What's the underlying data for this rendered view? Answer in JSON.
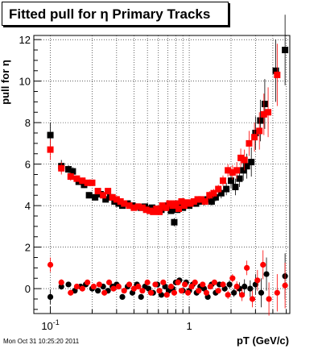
{
  "header": {
    "title": "Fitted pull for η  Primary Tracks"
  },
  "footer": {
    "timestamp": "Mon Oct 31 10:25:20 2011"
  },
  "chart_data": {
    "type": "scatter",
    "title": "Fitted pull for η  Primary Tracks",
    "xlabel": "pT (GeV/c)",
    "ylabel": "pull for η",
    "xscale": "log",
    "xlim": [
      0.076,
      5.3
    ],
    "ylim": [
      -1.2,
      12.2
    ],
    "grid": true,
    "x_ticks": [
      {
        "value": 0.1,
        "label_base": "10",
        "label_exp": "-1"
      },
      {
        "value": 1,
        "label": "1"
      }
    ],
    "y_ticks": [
      {
        "value": 0,
        "label": "0"
      },
      {
        "value": 2,
        "label": "2"
      },
      {
        "value": 4,
        "label": "4"
      },
      {
        "value": 6,
        "label": "6"
      },
      {
        "value": 8,
        "label": "8"
      },
      {
        "value": 10,
        "label": "10"
      },
      {
        "value": 12,
        "label": "12"
      }
    ],
    "colors": {
      "black_series": "#000000",
      "red_series": "#ff0000"
    },
    "sigma_series": [
      {
        "color": "black",
        "marker": "square",
        "points": [
          [
            0.1,
            7.4,
            0.6
          ],
          [
            0.12,
            5.9,
            0.3
          ],
          [
            0.135,
            5.75,
            0.2
          ],
          [
            0.145,
            5.65,
            0.2
          ],
          [
            0.16,
            5.15,
            0.15
          ],
          [
            0.175,
            5.0,
            0.15
          ],
          [
            0.19,
            4.5,
            0.15
          ],
          [
            0.21,
            4.4,
            0.15
          ],
          [
            0.23,
            4.55,
            0.15
          ],
          [
            0.25,
            4.3,
            0.1
          ],
          [
            0.27,
            4.4,
            0.1
          ],
          [
            0.29,
            4.2,
            0.1
          ],
          [
            0.31,
            4.1,
            0.1
          ],
          [
            0.33,
            4.0,
            0.1
          ],
          [
            0.36,
            4.1,
            0.1
          ],
          [
            0.39,
            4.0,
            0.1
          ],
          [
            0.42,
            3.95,
            0.1
          ],
          [
            0.45,
            3.9,
            0.1
          ],
          [
            0.48,
            3.95,
            0.1
          ],
          [
            0.51,
            3.85,
            0.1
          ],
          [
            0.54,
            3.9,
            0.1
          ],
          [
            0.57,
            3.8,
            0.1
          ],
          [
            0.6,
            3.75,
            0.1
          ],
          [
            0.63,
            3.8,
            0.15
          ],
          [
            0.66,
            3.9,
            0.15
          ],
          [
            0.7,
            4.0,
            0.15
          ],
          [
            0.74,
            3.75,
            0.15
          ],
          [
            0.78,
            3.2,
            0.2
          ],
          [
            0.82,
            3.8,
            0.15
          ],
          [
            0.86,
            4.1,
            0.15
          ],
          [
            0.9,
            3.9,
            0.15
          ],
          [
            0.95,
            4.05,
            0.15
          ],
          [
            1.0,
            4.0,
            0.15
          ],
          [
            1.06,
            4.1,
            0.15
          ],
          [
            1.12,
            4.1,
            0.15
          ],
          [
            1.2,
            4.2,
            0.15
          ],
          [
            1.28,
            4.2,
            0.2
          ],
          [
            1.36,
            4.3,
            0.2
          ],
          [
            1.45,
            4.2,
            0.2
          ],
          [
            1.55,
            4.4,
            0.2
          ],
          [
            1.7,
            4.6,
            0.25
          ],
          [
            1.85,
            4.8,
            0.3
          ],
          [
            2.0,
            5.2,
            0.35
          ],
          [
            2.15,
            4.9,
            0.4
          ],
          [
            2.3,
            5.3,
            0.4
          ],
          [
            2.45,
            5.7,
            0.5
          ],
          [
            2.6,
            5.9,
            0.6
          ],
          [
            2.8,
            6.1,
            0.7
          ],
          [
            3.0,
            7.5,
            0.8
          ],
          [
            3.25,
            8.1,
            1.0
          ],
          [
            3.5,
            8.9,
            1.2
          ],
          [
            4.2,
            10.5,
            1.5
          ],
          [
            4.9,
            11.5,
            1.7
          ]
        ]
      },
      {
        "color": "red",
        "marker": "square",
        "points": [
          [
            0.1,
            6.7,
            0.5
          ],
          [
            0.12,
            5.8,
            0.3
          ],
          [
            0.14,
            5.4,
            0.2
          ],
          [
            0.155,
            5.3,
            0.15
          ],
          [
            0.17,
            5.2,
            0.15
          ],
          [
            0.185,
            5.1,
            0.15
          ],
          [
            0.2,
            5.1,
            0.12
          ],
          [
            0.22,
            4.7,
            0.12
          ],
          [
            0.24,
            4.5,
            0.1
          ],
          [
            0.26,
            4.7,
            0.1
          ],
          [
            0.28,
            4.4,
            0.1
          ],
          [
            0.3,
            4.3,
            0.1
          ],
          [
            0.32,
            4.2,
            0.1
          ],
          [
            0.34,
            4.1,
            0.1
          ],
          [
            0.37,
            4.0,
            0.1
          ],
          [
            0.4,
            3.9,
            0.1
          ],
          [
            0.43,
            3.95,
            0.1
          ],
          [
            0.46,
            3.9,
            0.1
          ],
          [
            0.49,
            3.8,
            0.1
          ],
          [
            0.52,
            3.75,
            0.1
          ],
          [
            0.55,
            3.7,
            0.1
          ],
          [
            0.58,
            3.85,
            0.1
          ],
          [
            0.61,
            3.7,
            0.1
          ],
          [
            0.64,
            4.0,
            0.12
          ],
          [
            0.68,
            3.9,
            0.12
          ],
          [
            0.72,
            4.1,
            0.12
          ],
          [
            0.76,
            4.0,
            0.12
          ],
          [
            0.8,
            4.1,
            0.12
          ],
          [
            0.84,
            3.85,
            0.12
          ],
          [
            0.88,
            4.2,
            0.12
          ],
          [
            0.92,
            4.0,
            0.12
          ],
          [
            0.97,
            4.15,
            0.12
          ],
          [
            1.02,
            4.1,
            0.12
          ],
          [
            1.08,
            4.2,
            0.15
          ],
          [
            1.15,
            4.3,
            0.15
          ],
          [
            1.22,
            4.3,
            0.15
          ],
          [
            1.3,
            4.2,
            0.15
          ],
          [
            1.4,
            4.5,
            0.2
          ],
          [
            1.5,
            4.6,
            0.2
          ],
          [
            1.62,
            4.8,
            0.2
          ],
          [
            1.75,
            5.2,
            0.25
          ],
          [
            1.9,
            5.7,
            0.3
          ],
          [
            2.05,
            5.6,
            0.35
          ],
          [
            2.2,
            5.7,
            0.4
          ],
          [
            2.35,
            6.3,
            0.45
          ],
          [
            2.5,
            6.2,
            0.5
          ],
          [
            2.7,
            7.0,
            0.6
          ],
          [
            2.95,
            7.3,
            0.7
          ],
          [
            3.2,
            7.6,
            0.9
          ],
          [
            3.45,
            8.4,
            1.0
          ],
          [
            3.7,
            8.5,
            1.2
          ],
          [
            4.3,
            10.3,
            1.5
          ]
        ]
      }
    ],
    "mean_series": [
      {
        "color": "black",
        "marker": "circle",
        "points": [
          [
            0.1,
            -0.4,
            0.35
          ],
          [
            0.12,
            0.1,
            0.15
          ],
          [
            0.135,
            0.2,
            0.12
          ],
          [
            0.15,
            -0.1,
            0.1
          ],
          [
            0.165,
            0.1,
            0.1
          ],
          [
            0.18,
            0.2,
            0.1
          ],
          [
            0.2,
            0.0,
            0.1
          ],
          [
            0.22,
            -0.1,
            0.08
          ],
          [
            0.24,
            0.1,
            0.08
          ],
          [
            0.26,
            -0.1,
            0.08
          ],
          [
            0.28,
            0.1,
            0.07
          ],
          [
            0.3,
            0.2,
            0.07
          ],
          [
            0.33,
            -0.4,
            0.07
          ],
          [
            0.36,
            0.1,
            0.07
          ],
          [
            0.39,
            -0.2,
            0.07
          ],
          [
            0.42,
            0.2,
            0.07
          ],
          [
            0.45,
            -0.4,
            0.07
          ],
          [
            0.48,
            0.1,
            0.07
          ],
          [
            0.51,
            0.0,
            0.07
          ],
          [
            0.55,
            -0.2,
            0.07
          ],
          [
            0.59,
            0.2,
            0.07
          ],
          [
            0.63,
            -0.3,
            0.08
          ],
          [
            0.67,
            0.1,
            0.08
          ],
          [
            0.71,
            -0.1,
            0.08
          ],
          [
            0.76,
            0.0,
            0.08
          ],
          [
            0.8,
            0.3,
            0.08
          ],
          [
            0.85,
            0.4,
            0.08
          ],
          [
            0.9,
            -0.1,
            0.08
          ],
          [
            0.95,
            0.3,
            0.08
          ],
          [
            1.0,
            -0.1,
            0.08
          ],
          [
            1.06,
            0.2,
            0.1
          ],
          [
            1.13,
            -0.2,
            0.1
          ],
          [
            1.2,
            0.1,
            0.1
          ],
          [
            1.28,
            0.0,
            0.1
          ],
          [
            1.36,
            -0.4,
            0.1
          ],
          [
            1.45,
            0.2,
            0.12
          ],
          [
            1.55,
            -0.2,
            0.12
          ],
          [
            1.65,
            0.2,
            0.12
          ],
          [
            1.8,
            0.0,
            0.15
          ],
          [
            1.95,
            0.2,
            0.2
          ],
          [
            2.1,
            -0.2,
            0.2
          ],
          [
            2.3,
            0.0,
            0.3
          ],
          [
            2.5,
            0.1,
            0.35
          ],
          [
            2.75,
            0.0,
            0.4
          ],
          [
            3.0,
            0.2,
            0.5
          ],
          [
            3.3,
            -0.2,
            0.7
          ],
          [
            3.6,
            0.7,
            0.8
          ],
          [
            4.9,
            0.6,
            1.1
          ]
        ]
      },
      {
        "color": "red",
        "marker": "circle",
        "points": [
          [
            0.1,
            1.15,
            0.35
          ],
          [
            0.12,
            0.3,
            0.15
          ],
          [
            0.14,
            -0.2,
            0.12
          ],
          [
            0.155,
            0.1,
            0.1
          ],
          [
            0.17,
            0.0,
            0.1
          ],
          [
            0.185,
            0.3,
            0.1
          ],
          [
            0.205,
            0.1,
            0.1
          ],
          [
            0.225,
            0.2,
            0.08
          ],
          [
            0.245,
            -0.2,
            0.08
          ],
          [
            0.265,
            0.3,
            0.08
          ],
          [
            0.285,
            0.0,
            0.07
          ],
          [
            0.31,
            0.1,
            0.07
          ],
          [
            0.34,
            -0.1,
            0.07
          ],
          [
            0.37,
            0.2,
            0.07
          ],
          [
            0.4,
            0.0,
            0.07
          ],
          [
            0.43,
            0.1,
            0.07
          ],
          [
            0.46,
            -0.1,
            0.07
          ],
          [
            0.5,
            0.3,
            0.07
          ],
          [
            0.53,
            -0.2,
            0.07
          ],
          [
            0.57,
            0.2,
            0.07
          ],
          [
            0.61,
            -0.1,
            0.08
          ],
          [
            0.65,
            0.3,
            0.08
          ],
          [
            0.69,
            -0.3,
            0.08
          ],
          [
            0.74,
            0.1,
            0.08
          ],
          [
            0.78,
            -0.2,
            0.08
          ],
          [
            0.83,
            0.3,
            0.08
          ],
          [
            0.88,
            -0.1,
            0.08
          ],
          [
            0.93,
            0.2,
            0.08
          ],
          [
            0.98,
            -0.2,
            0.08
          ],
          [
            1.04,
            0.1,
            0.1
          ],
          [
            1.1,
            0.3,
            0.1
          ],
          [
            1.17,
            -0.1,
            0.1
          ],
          [
            1.25,
            0.2,
            0.1
          ],
          [
            1.33,
            -0.2,
            0.1
          ],
          [
            1.42,
            0.1,
            0.12
          ],
          [
            1.52,
            0.3,
            0.12
          ],
          [
            1.62,
            -0.1,
            0.12
          ],
          [
            1.75,
            0.2,
            0.15
          ],
          [
            1.9,
            -0.3,
            0.2
          ],
          [
            2.05,
            0.5,
            0.2
          ],
          [
            2.2,
            0.1,
            0.25
          ],
          [
            2.4,
            -0.3,
            0.3
          ],
          [
            2.6,
            1.0,
            0.35
          ],
          [
            2.85,
            -0.5,
            0.4
          ],
          [
            3.1,
            0.4,
            0.5
          ],
          [
            3.4,
            1.15,
            0.7
          ],
          [
            3.75,
            -0.5,
            0.8
          ],
          [
            4.3,
            -0.2,
            0.9
          ],
          [
            4.9,
            0.15,
            1.1
          ]
        ]
      }
    ]
  }
}
